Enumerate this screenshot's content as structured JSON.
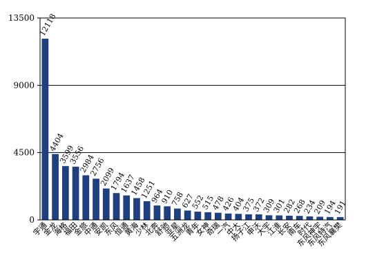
{
  "chart_data": {
    "type": "bar",
    "title": "",
    "xlabel": "",
    "ylabel": "",
    "ylim": [
      0,
      13500
    ],
    "yticks": [
      0,
      4500,
      9000,
      13500
    ],
    "grid": "horizontal",
    "legend": "none",
    "bar_color": "#1f3f7f",
    "categories": [
      "宇通",
      "金龙",
      "海格",
      "福田",
      "金旅",
      "中通",
      "安凯",
      "东风",
      "恒通",
      "黄海",
      "少林",
      "北奔",
      "舒驰",
      "亚星",
      "五洲龙",
      "青年",
      "女神",
      "奇瑞",
      "一汽",
      "中大",
      "扬子江",
      "申沃",
      "大宇",
      "江淮",
      "长安",
      "南车",
      "时代",
      "东风神宇",
      "东风特汽",
      "东风襄樊"
    ],
    "values": [
      12118,
      4404,
      3599,
      3556,
      2984,
      2756,
      2099,
      1794,
      1637,
      1458,
      1251,
      964,
      910,
      758,
      627,
      552,
      515,
      478,
      426,
      404,
      375,
      372,
      309,
      301,
      282,
      268,
      234,
      209,
      194,
      191
    ],
    "value_labels": [
      "12118",
      "4404",
      "3599",
      "3556",
      "2984",
      "2756",
      "2099",
      "1794",
      "1637",
      "1458",
      "1251",
      "964",
      "910",
      "758",
      "627",
      "552",
      "515",
      "478",
      "426",
      "404",
      "375",
      "372",
      "309",
      "301",
      "282",
      "268",
      "234",
      "209",
      "194",
      "191"
    ]
  }
}
